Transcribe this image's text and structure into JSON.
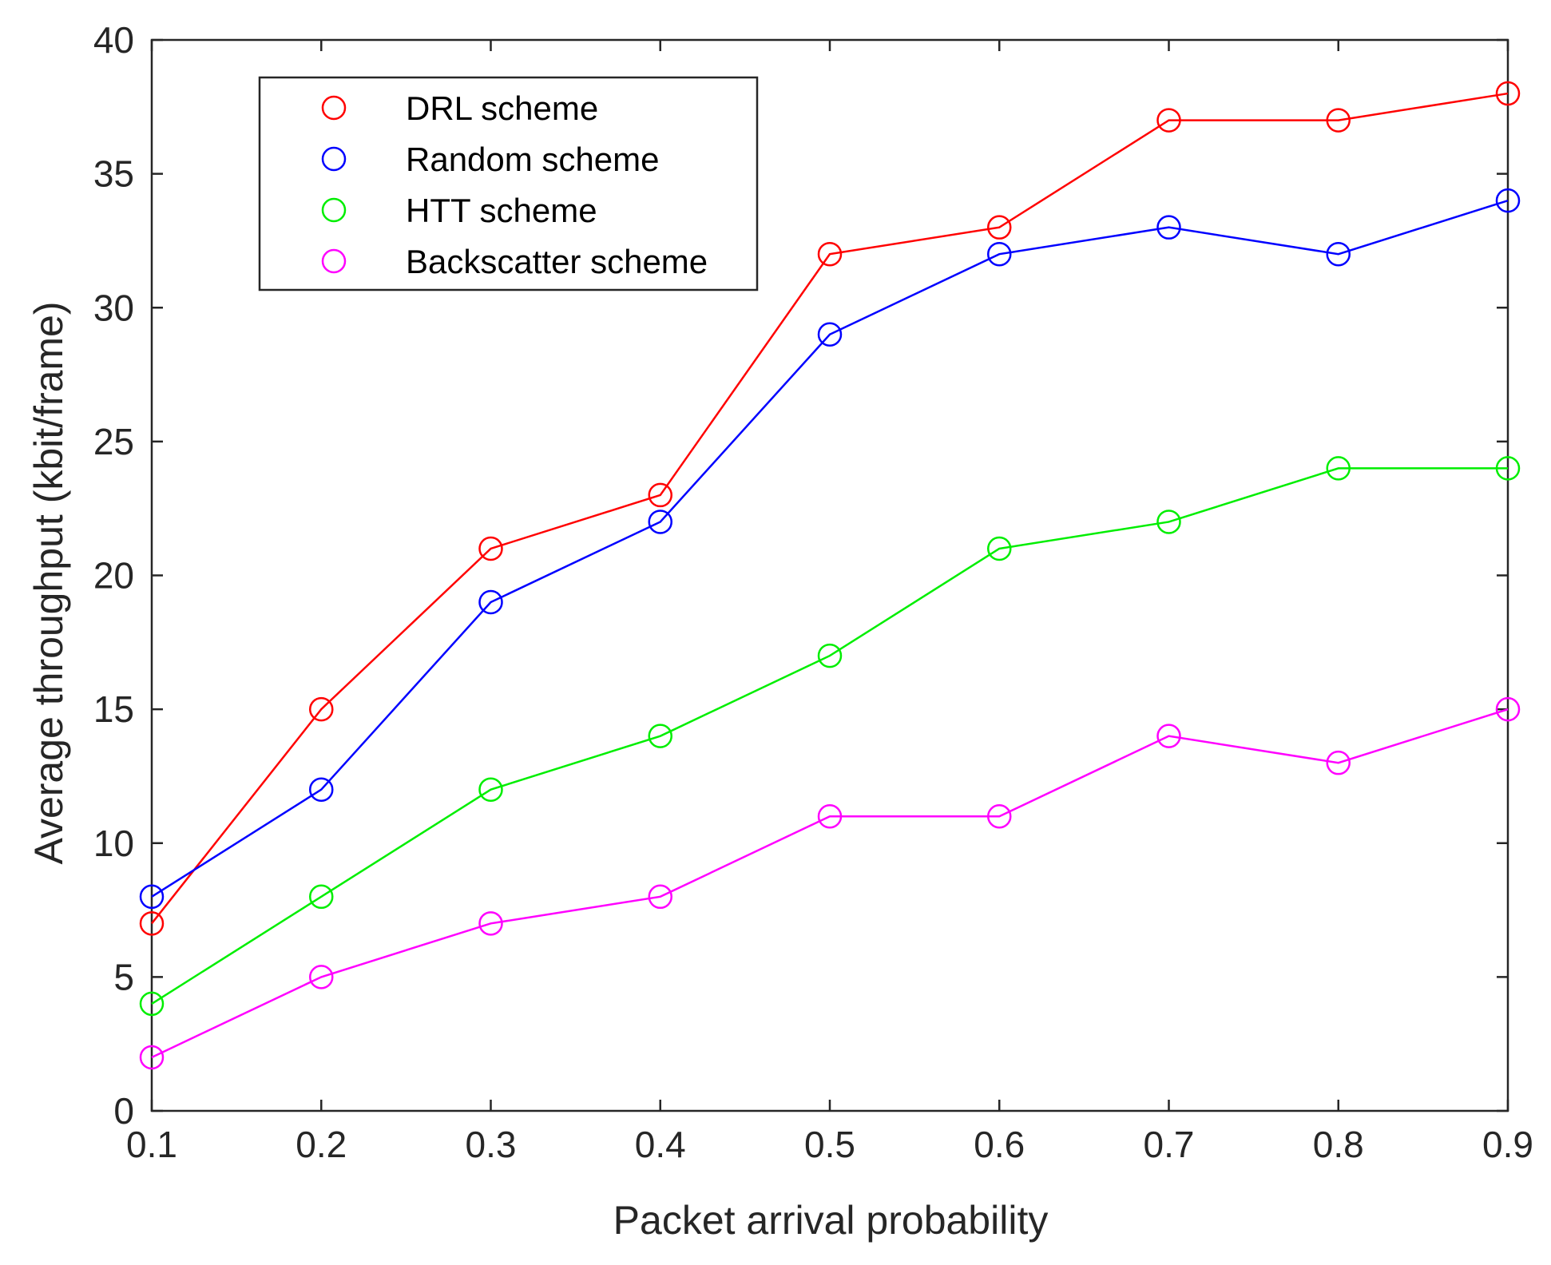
{
  "chart_data": {
    "type": "line",
    "title": "",
    "xlabel": "Packet arrival probability",
    "ylabel": "Average throughput  (kbit/frame)",
    "x": [
      0.1,
      0.2,
      0.3,
      0.4,
      0.5,
      0.6,
      0.7,
      0.8,
      0.9
    ],
    "xlim": [
      0.1,
      0.9
    ],
    "ylim": [
      0,
      40
    ],
    "x_ticks": [
      "0.1",
      "0.2",
      "0.3",
      "0.4",
      "0.5",
      "0.6",
      "0.7",
      "0.8",
      "0.9"
    ],
    "y_ticks": [
      "0",
      "5",
      "10",
      "15",
      "20",
      "25",
      "30",
      "35",
      "40"
    ],
    "grid": false,
    "legend_position": "top-left",
    "marker": "circle",
    "series": [
      {
        "name": "DRL scheme",
        "color": "#ff0000",
        "values": [
          7,
          15,
          21,
          23,
          32,
          33,
          37,
          37,
          38
        ]
      },
      {
        "name": "Random scheme",
        "color": "#0000ff",
        "values": [
          8,
          12,
          19,
          22,
          29,
          32,
          33,
          32,
          34
        ]
      },
      {
        "name": "HTT scheme",
        "color": "#00ee00",
        "values": [
          4,
          8,
          12,
          14,
          17,
          21,
          22,
          24,
          24
        ]
      },
      {
        "name": "Backscatter scheme",
        "color": "#ff00ff",
        "values": [
          2,
          5,
          7,
          8,
          11,
          11,
          14,
          13,
          15
        ]
      }
    ]
  }
}
